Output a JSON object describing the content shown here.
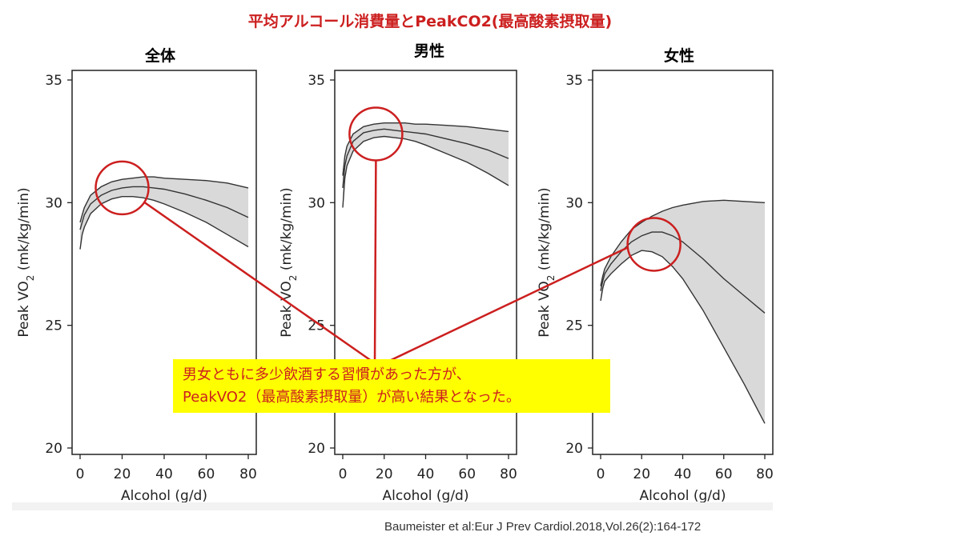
{
  "title": "平均アルコール消費量とPeakCO2(最高酸素摂取量)",
  "callout": {
    "line1": "男女ともに多少飲酒する習慣があった方が、",
    "line2": "PeakVO2（最高酸素摂取量）が高い結果となった。"
  },
  "citation": "Baumeister et al:Eur J Prev Cardiol.2018,Vol.26(2):164-172",
  "colors": {
    "title": "#cc1f1f",
    "annotation": "#cc1f1f",
    "callout_bg": "#ffff00",
    "band": "#d9d9d9",
    "line": "#333333"
  },
  "chart_data": [
    {
      "type": "line",
      "panel_title": "全体",
      "xlabel": "Alcohol (g/d)",
      "ylabel": "Peak VO2 (mk/kg/min)",
      "xlim": [
        0,
        80
      ],
      "ylim": [
        20,
        35
      ],
      "x_ticks": [
        0,
        20,
        40,
        60,
        80
      ],
      "y_ticks": [
        20,
        25,
        30,
        35
      ],
      "x": [
        0,
        1,
        2,
        5,
        10,
        15,
        20,
        25,
        30,
        35,
        40,
        50,
        60,
        70,
        80
      ],
      "series": [
        {
          "values": [
            28.9,
            29.2,
            29.5,
            29.95,
            30.3,
            30.5,
            30.6,
            30.65,
            30.65,
            30.6,
            30.55,
            30.35,
            30.1,
            29.8,
            29.4
          ]
        },
        {
          "values": [
            29.2,
            29.5,
            29.8,
            30.3,
            30.65,
            30.85,
            30.95,
            31.0,
            31.05,
            31.05,
            31.0,
            30.95,
            30.9,
            30.8,
            30.6
          ]
        },
        {
          "values": [
            28.1,
            28.7,
            29.0,
            29.55,
            29.95,
            30.15,
            30.25,
            30.25,
            30.2,
            30.1,
            29.95,
            29.6,
            29.2,
            28.7,
            28.2
          ]
        }
      ],
      "highlight": {
        "x": 20,
        "y": 30.6
      }
    },
    {
      "type": "line",
      "panel_title": "男性",
      "xlabel": "Alcohol (g/d)",
      "ylabel": "Peak VO2 (mk/kg/min)",
      "xlim": [
        0,
        80
      ],
      "ylim": [
        20,
        35
      ],
      "x_ticks": [
        0,
        20,
        40,
        60,
        80
      ],
      "y_ticks": [
        20,
        25,
        30,
        35
      ],
      "x": [
        0,
        1,
        2,
        5,
        10,
        15,
        20,
        25,
        30,
        35,
        40,
        50,
        60,
        70,
        80
      ],
      "series": [
        {
          "values": [
            30.6,
            31.5,
            31.9,
            32.5,
            32.85,
            32.95,
            33.0,
            32.95,
            32.9,
            32.85,
            32.8,
            32.6,
            32.4,
            32.15,
            31.8
          ]
        },
        {
          "values": [
            31.1,
            31.9,
            32.3,
            32.8,
            33.1,
            33.2,
            33.25,
            33.25,
            33.25,
            33.2,
            33.2,
            33.15,
            33.1,
            33.0,
            32.9
          ]
        },
        {
          "values": [
            29.8,
            31.0,
            31.5,
            32.1,
            32.5,
            32.65,
            32.7,
            32.65,
            32.6,
            32.5,
            32.35,
            32.0,
            31.65,
            31.2,
            30.7
          ]
        }
      ],
      "highlight": {
        "x": 16,
        "y": 32.8
      }
    },
    {
      "type": "line",
      "panel_title": "女性",
      "xlabel": "Alcohol (g/d)",
      "ylabel": "Peak VO2 (mk/kg/min)",
      "xlim": [
        0,
        80
      ],
      "ylim": [
        20,
        35
      ],
      "x_ticks": [
        0,
        20,
        40,
        60,
        80
      ],
      "y_ticks": [
        20,
        25,
        30,
        35
      ],
      "x": [
        0,
        1,
        2,
        5,
        10,
        15,
        20,
        25,
        30,
        35,
        40,
        50,
        60,
        70,
        80
      ],
      "series": [
        {
          "values": [
            26.4,
            26.8,
            27.1,
            27.5,
            28.0,
            28.4,
            28.65,
            28.8,
            28.8,
            28.65,
            28.4,
            27.7,
            26.9,
            26.2,
            25.5
          ]
        },
        {
          "values": [
            26.6,
            27.0,
            27.3,
            27.8,
            28.4,
            28.9,
            29.2,
            29.45,
            29.65,
            29.8,
            29.9,
            30.05,
            30.1,
            30.05,
            30.0
          ]
        },
        {
          "values": [
            26.0,
            26.5,
            26.8,
            27.1,
            27.5,
            27.85,
            28.05,
            28.0,
            27.8,
            27.4,
            26.9,
            25.6,
            24.1,
            22.6,
            21.0
          ]
        }
      ],
      "highlight": {
        "x": 26,
        "y": 28.3
      }
    }
  ]
}
